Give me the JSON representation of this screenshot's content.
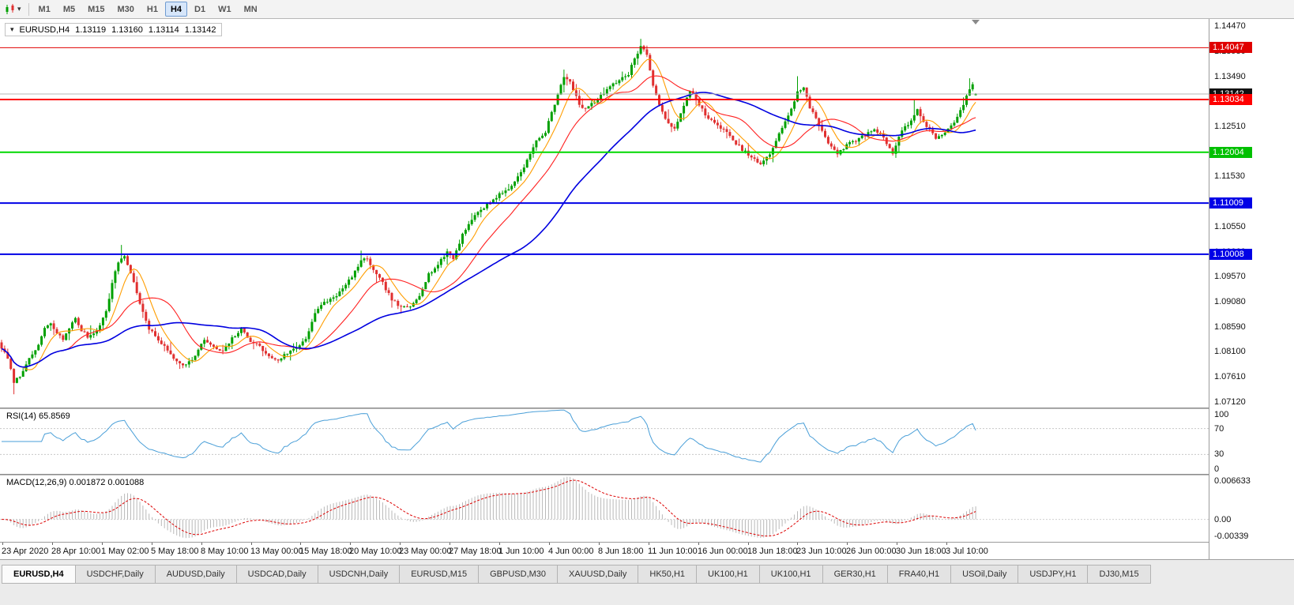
{
  "ui": {
    "toolbar": {
      "timeframes": [
        "M1",
        "M5",
        "M15",
        "M30",
        "H1",
        "H4",
        "D1",
        "W1",
        "MN"
      ],
      "active_timeframe": "H4"
    },
    "symbol_info": {
      "symbol": "EURUSD,H4",
      "open": "1.13119",
      "high": "1.13160",
      "low": "1.13114",
      "close": "1.13142"
    },
    "time_labels": [
      "23 Apr 2020",
      "28 Apr 10:00",
      "1 May 02:00",
      "5 May 18:00",
      "8 May 10:00",
      "13 May 00:00",
      "15 May 18:00",
      "20 May 10:00",
      "23 May 00:00",
      "27 May 18:00",
      "1 Jun 10:00",
      "4 Jun 00:00",
      "8 Jun 18:00",
      "11 Jun 10:00",
      "16 Jun 00:00",
      "18 Jun 18:00",
      "23 Jun 10:00",
      "26 Jun 00:00",
      "30 Jun 18:00",
      "3 Jul 10:00"
    ],
    "tabs": [
      {
        "label": "EURUSD,H4",
        "active": true
      },
      {
        "label": "USDCHF,Daily",
        "active": false
      },
      {
        "label": "AUDUSD,Daily",
        "active": false
      },
      {
        "label": "USDCAD,Daily",
        "active": false
      },
      {
        "label": "USDCNH,Daily",
        "active": false
      },
      {
        "label": "EURUSD,M15",
        "active": false
      },
      {
        "label": "GBPUSD,M30",
        "active": false
      },
      {
        "label": "XAUUSD,Daily",
        "active": false
      },
      {
        "label": "HK50,H1",
        "active": false
      },
      {
        "label": "UK100,H1",
        "active": false
      },
      {
        "label": "UK100,H1",
        "active": false
      },
      {
        "label": "GER30,H1",
        "active": false
      },
      {
        "label": "FRA40,H1",
        "active": false
      },
      {
        "label": "USOil,Daily",
        "active": false
      },
      {
        "label": "USDJPY,H1",
        "active": false
      },
      {
        "label": "DJ30,M15",
        "active": false
      }
    ]
  },
  "chart_data": {
    "type": "candlestick",
    "title": "EURUSD,H4",
    "symbol": "EURUSD",
    "timeframe": "H4",
    "num_candles": 318,
    "candle_spacing": 3.89,
    "seed": 7,
    "close_jitter": 0.0006,
    "wick_noise": 0.0007,
    "price_range": [
      1.0701,
      1.1461
    ],
    "colors": {
      "bull": "#00a000",
      "bear": "#e03030"
    },
    "y_axis_ticks": [
      "1.14470",
      "1.13980",
      "1.13490",
      "1.13000",
      "1.12510",
      "1.12020",
      "1.11530",
      "1.11040",
      "1.10550",
      "1.10060",
      "1.09570",
      "1.09080",
      "1.08590",
      "1.08100",
      "1.07610",
      "1.07120"
    ],
    "scale_badges": [
      {
        "label": "1.14047",
        "color": "#e00000"
      },
      {
        "label": "1.13142",
        "color": "#111111"
      },
      {
        "label": "1.13034",
        "color": "#ff0000"
      },
      {
        "label": "1.12004",
        "color": "#00c000"
      },
      {
        "label": "1.11009",
        "color": "#0000e6"
      },
      {
        "label": "1.10008",
        "color": "#0000e6"
      }
    ],
    "horizontal_lines": [
      {
        "price": 1.14047,
        "color": "#e00000",
        "width": 1
      },
      {
        "price": 1.13142,
        "color": "#b4b4b4",
        "width": 1
      },
      {
        "price": 1.13034,
        "color": "#ff0000",
        "width": 2
      },
      {
        "price": 1.12004,
        "color": "#00d800",
        "width": 2
      },
      {
        "price": 1.11009,
        "color": "#0000e6",
        "width": 2
      },
      {
        "price": 1.10008,
        "color": "#0000e6",
        "width": 2
      }
    ],
    "last_candle": {
      "open": 1.13119,
      "high": 1.1316,
      "low": 1.13114,
      "close": 1.13142
    },
    "price_path": [
      [
        0,
        1.0818
      ],
      [
        2,
        1.0796
      ],
      [
        4,
        1.0752
      ],
      [
        6,
        1.0762
      ],
      [
        8,
        1.0788
      ],
      [
        10,
        1.0802
      ],
      [
        12,
        1.0824
      ],
      [
        14,
        1.0856
      ],
      [
        16,
        1.0864
      ],
      [
        18,
        1.0846
      ],
      [
        20,
        1.0834
      ],
      [
        22,
        1.0858
      ],
      [
        24,
        1.0874
      ],
      [
        26,
        1.0852
      ],
      [
        28,
        1.084
      ],
      [
        30,
        1.0846
      ],
      [
        32,
        1.0864
      ],
      [
        34,
        1.0888
      ],
      [
        36,
        1.0944
      ],
      [
        38,
        1.0986
      ],
      [
        40,
        1.0998
      ],
      [
        42,
        1.0964
      ],
      [
        44,
        1.0926
      ],
      [
        46,
        1.0886
      ],
      [
        48,
        1.0854
      ],
      [
        51,
        1.0834
      ],
      [
        54,
        1.0812
      ],
      [
        57,
        1.0792
      ],
      [
        60,
        1.0784
      ],
      [
        63,
        1.0802
      ],
      [
        66,
        1.0834
      ],
      [
        69,
        1.0818
      ],
      [
        72,
        1.081
      ],
      [
        75,
        1.0836
      ],
      [
        78,
        1.0854
      ],
      [
        81,
        1.0832
      ],
      [
        84,
        1.082
      ],
      [
        87,
        1.08
      ],
      [
        90,
        1.0794
      ],
      [
        93,
        1.0808
      ],
      [
        96,
        1.0818
      ],
      [
        99,
        1.0836
      ],
      [
        102,
        1.0886
      ],
      [
        105,
        1.0906
      ],
      [
        108,
        1.0916
      ],
      [
        111,
        1.0932
      ],
      [
        114,
        1.0958
      ],
      [
        117,
        1.0986
      ],
      [
        119,
        1.0994
      ],
      [
        121,
        1.0968
      ],
      [
        124,
        1.0944
      ],
      [
        127,
        1.0912
      ],
      [
        130,
        1.0896
      ],
      [
        133,
        1.0898
      ],
      [
        136,
        1.0922
      ],
      [
        139,
        1.0962
      ],
      [
        142,
        1.098
      ],
      [
        145,
        1.1006
      ],
      [
        147,
        1.0992
      ],
      [
        150,
        1.104
      ],
      [
        153,
        1.107
      ],
      [
        156,
        1.1088
      ],
      [
        159,
        1.1102
      ],
      [
        162,
        1.1118
      ],
      [
        165,
        1.1128
      ],
      [
        168,
        1.1152
      ],
      [
        171,
        1.1184
      ],
      [
        174,
        1.1222
      ],
      [
        177,
        1.124
      ],
      [
        180,
        1.1296
      ],
      [
        183,
        1.135
      ],
      [
        185,
        1.1336
      ],
      [
        187,
        1.1308
      ],
      [
        189,
        1.1284
      ],
      [
        192,
        1.1294
      ],
      [
        195,
        1.131
      ],
      [
        198,
        1.1332
      ],
      [
        201,
        1.134
      ],
      [
        204,
        1.1354
      ],
      [
        206,
        1.1384
      ],
      [
        208,
        1.1408
      ],
      [
        210,
        1.1392
      ],
      [
        212,
        1.133
      ],
      [
        214,
        1.129
      ],
      [
        216,
        1.1268
      ],
      [
        219,
        1.1244
      ],
      [
        222,
        1.129
      ],
      [
        224,
        1.1322
      ],
      [
        226,
        1.1306
      ],
      [
        229,
        1.1272
      ],
      [
        232,
        1.1256
      ],
      [
        235,
        1.1246
      ],
      [
        238,
        1.1222
      ],
      [
        241,
        1.1206
      ],
      [
        244,
        1.119
      ],
      [
        247,
        1.1176
      ],
      [
        250,
        1.1196
      ],
      [
        253,
        1.1238
      ],
      [
        256,
        1.127
      ],
      [
        259,
        1.1318
      ],
      [
        261,
        1.1326
      ],
      [
        263,
        1.1288
      ],
      [
        266,
        1.1254
      ],
      [
        269,
        1.122
      ],
      [
        272,
        1.1198
      ],
      [
        275,
        1.1214
      ],
      [
        278,
        1.1224
      ],
      [
        281,
        1.1234
      ],
      [
        284,
        1.1246
      ],
      [
        287,
        1.123
      ],
      [
        290,
        1.1198
      ],
      [
        293,
        1.1244
      ],
      [
        296,
        1.1262
      ],
      [
        298,
        1.1284
      ],
      [
        301,
        1.125
      ],
      [
        304,
        1.1228
      ],
      [
        307,
        1.124
      ],
      [
        310,
        1.1256
      ],
      [
        312,
        1.128
      ],
      [
        314,
        1.131
      ],
      [
        316,
        1.1334
      ],
      [
        317,
        1.1314
      ]
    ],
    "wick_overrides": [
      {
        "i": 4,
        "low": 1.0727
      },
      {
        "i": 39,
        "high": 1.1019
      },
      {
        "i": 117,
        "high": 1.1008
      },
      {
        "i": 183,
        "high": 1.1362
      },
      {
        "i": 208,
        "high": 1.1422
      },
      {
        "i": 259,
        "high": 1.1349
      },
      {
        "i": 297,
        "high": 1.1302
      },
      {
        "i": 315,
        "high": 1.1345
      }
    ],
    "moving_averages": [
      {
        "period": 8,
        "color": "#ff9d00",
        "width": 1.1
      },
      {
        "period": 20,
        "color": "#ff2020",
        "width": 1.1
      },
      {
        "period": 50,
        "color": "#0000e0",
        "width": 1.6
      }
    ],
    "indicators": [
      {
        "name": "RSI",
        "label": "RSI(14) 65.8569",
        "period": 14,
        "value": 65.8569,
        "levels": [
          70,
          30
        ],
        "scale_ticks": [
          "100",
          "70",
          "30",
          "0"
        ],
        "color": "#4a9fd8"
      },
      {
        "name": "MACD",
        "label": "MACD(12,26,9) 0.001872 0.001088",
        "fast": 12,
        "slow": 26,
        "signal": 9,
        "values": [
          0.001872,
          0.001088
        ],
        "scale_ticks": [
          "0.006633",
          "0.00",
          "-0.00339"
        ],
        "hist_color": "#b8b8b8",
        "signal_color": "#dd0000"
      }
    ]
  }
}
